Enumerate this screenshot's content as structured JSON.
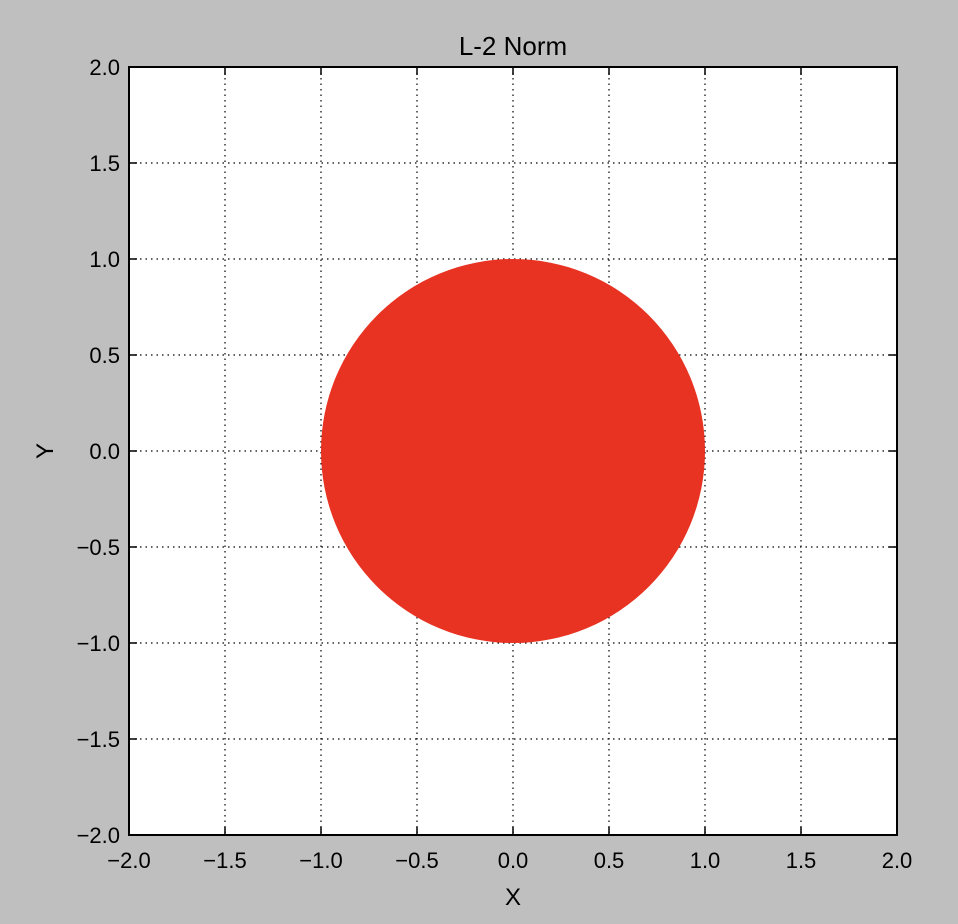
{
  "chart_data": {
    "type": "area",
    "title": "L-2 Norm",
    "xlabel": "X",
    "ylabel": "Y",
    "xlim": [
      -2.0,
      2.0
    ],
    "ylim": [
      -2.0,
      2.0
    ],
    "x_ticks": [
      -2.0,
      -1.5,
      -1.0,
      -0.5,
      0.0,
      0.5,
      1.0,
      1.5,
      2.0
    ],
    "y_ticks": [
      -2.0,
      -1.5,
      -1.0,
      -0.5,
      0.0,
      0.5,
      1.0,
      1.5,
      2.0
    ],
    "x_tick_labels": [
      "−2.0",
      "−1.5",
      "−1.0",
      "−0.5",
      "0.0",
      "0.5",
      "1.0",
      "1.5",
      "2.0"
    ],
    "y_tick_labels": [
      "−2.0",
      "−1.5",
      "−1.0",
      "−0.5",
      "0.0",
      "0.5",
      "1.0",
      "1.5",
      "2.0"
    ],
    "grid": true,
    "grid_style": "dotted",
    "shape": {
      "kind": "filled-circle",
      "center": [
        0.0,
        0.0
      ],
      "radius": 1.0,
      "color": "#e83323"
    }
  },
  "colors": {
    "figure_background": "#bfbfbf",
    "plot_background": "#ffffff",
    "fill": "#e83323"
  }
}
